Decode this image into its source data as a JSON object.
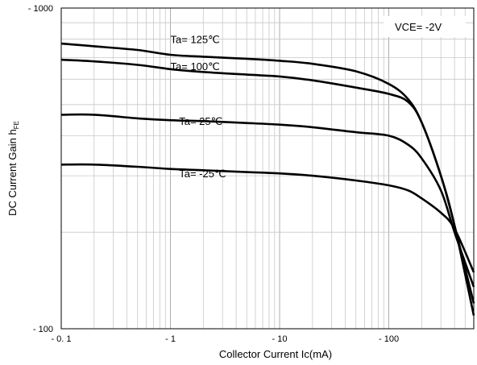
{
  "chart_data": {
    "type": "line",
    "xlabel": "Collector Current  Ic(mA)",
    "ylabel": "DC Current Gain  h",
    "ylabel_subscript": "FE",
    "x_scale": "log",
    "y_scale": "log",
    "xlim": [
      0.1,
      600
    ],
    "ylim": [
      100,
      1000
    ],
    "x_ticks": [
      {
        "value": 0.1,
        "label": "- 0. 1"
      },
      {
        "value": 1,
        "label": "- 1"
      },
      {
        "value": 10,
        "label": "- 10"
      },
      {
        "value": 100,
        "label": "- 100"
      }
    ],
    "y_ticks": [
      {
        "value": 1000,
        "label": "- 1000"
      },
      {
        "value": 100,
        "label": "- 100"
      }
    ],
    "grid": true,
    "condition_label": "VCE= -2V",
    "series": [
      {
        "name": "Ta= 125℃",
        "label_at": [
          1,
          800
        ],
        "points": [
          [
            0.1,
            775
          ],
          [
            0.2,
            760
          ],
          [
            0.5,
            740
          ],
          [
            1,
            715
          ],
          [
            2,
            705
          ],
          [
            5,
            695
          ],
          [
            10,
            685
          ],
          [
            20,
            670
          ],
          [
            50,
            635
          ],
          [
            100,
            580
          ],
          [
            150,
            520
          ],
          [
            200,
            440
          ],
          [
            300,
            300
          ],
          [
            400,
            210
          ],
          [
            600,
            120
          ]
        ]
      },
      {
        "name": "Ta= 100℃",
        "label_at": [
          1,
          660
        ],
        "points": [
          [
            0.1,
            690
          ],
          [
            0.2,
            682
          ],
          [
            0.5,
            665
          ],
          [
            1,
            645
          ],
          [
            2,
            632
          ],
          [
            5,
            620
          ],
          [
            10,
            612
          ],
          [
            20,
            595
          ],
          [
            50,
            565
          ],
          [
            100,
            540
          ],
          [
            150,
            510
          ],
          [
            200,
            440
          ],
          [
            300,
            300
          ],
          [
            400,
            210
          ],
          [
            600,
            110
          ]
        ]
      },
      {
        "name": "Ta= 25℃",
        "label_at": [
          1.2,
          445
        ],
        "points": [
          [
            0.1,
            465
          ],
          [
            0.2,
            465
          ],
          [
            0.5,
            453
          ],
          [
            1,
            447
          ],
          [
            2,
            444
          ],
          [
            5,
            438
          ],
          [
            10,
            433
          ],
          [
            20,
            425
          ],
          [
            50,
            410
          ],
          [
            100,
            400
          ],
          [
            150,
            375
          ],
          [
            200,
            340
          ],
          [
            300,
            270
          ],
          [
            400,
            200
          ],
          [
            600,
            135
          ]
        ]
      },
      {
        "name": "Ta= -25℃",
        "label_at": [
          1.2,
          305
        ],
        "points": [
          [
            0.1,
            325
          ],
          [
            0.2,
            325
          ],
          [
            0.5,
            320
          ],
          [
            1,
            315
          ],
          [
            2,
            312
          ],
          [
            5,
            308
          ],
          [
            10,
            305
          ],
          [
            20,
            300
          ],
          [
            50,
            290
          ],
          [
            100,
            280
          ],
          [
            150,
            270
          ],
          [
            200,
            255
          ],
          [
            300,
            230
          ],
          [
            400,
            205
          ],
          [
            600,
            150
          ]
        ]
      }
    ]
  }
}
